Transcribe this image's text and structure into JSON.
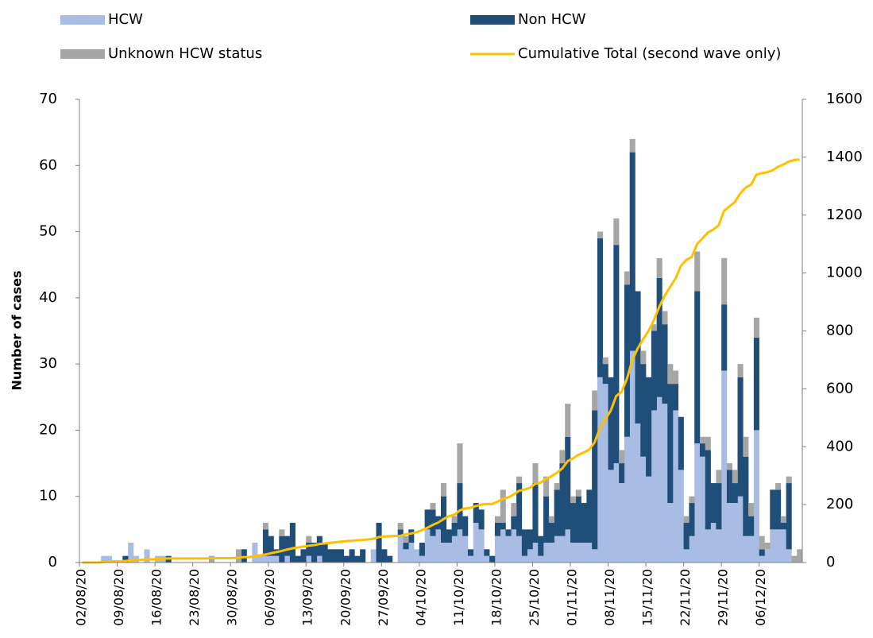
{
  "chart_data": {
    "type": "bar",
    "stacked": true,
    "ylabel": "Number of cases",
    "categories": [
      "02/08/20",
      null,
      null,
      null,
      null,
      null,
      null,
      "09/08/20",
      null,
      null,
      null,
      null,
      null,
      null,
      "16/08/20",
      null,
      null,
      null,
      null,
      null,
      null,
      "23/08/20",
      null,
      null,
      null,
      null,
      null,
      null,
      "30/08/20",
      null,
      null,
      null,
      null,
      null,
      null,
      "06/09/20",
      null,
      null,
      null,
      null,
      null,
      null,
      "13/09/20",
      null,
      null,
      null,
      null,
      null,
      null,
      "20/09/20",
      null,
      null,
      null,
      null,
      null,
      null,
      "27/09/20",
      null,
      null,
      null,
      null,
      null,
      null,
      "04/10/20",
      null,
      null,
      null,
      null,
      null,
      null,
      "11/10/20",
      null,
      null,
      null,
      null,
      null,
      null,
      "18/10/20",
      null,
      null,
      null,
      null,
      null,
      null,
      "25/10/20",
      null,
      null,
      null,
      null,
      null,
      null,
      "01/11/20",
      null,
      null,
      null,
      null,
      null,
      null,
      "08/11/20",
      null,
      null,
      null,
      null,
      null,
      null,
      "15/11/20",
      null,
      null,
      null,
      null,
      null,
      null,
      "22/11/20",
      null,
      null,
      null,
      null,
      null,
      null,
      "29/11/20",
      null,
      null,
      null,
      null,
      null,
      null,
      "06/12/20",
      null,
      null,
      null,
      null,
      null,
      null,
      null
    ],
    "series": [
      {
        "name": "HCW",
        "color": "#a9bde4",
        "values": [
          0,
          0,
          0,
          0,
          1,
          1,
          0,
          0,
          0,
          3,
          1,
          0,
          2,
          0,
          1,
          1,
          0,
          0,
          0,
          0,
          0,
          0,
          0,
          0,
          0,
          0,
          0,
          0,
          0,
          0,
          0,
          0,
          3,
          1,
          1,
          1,
          1,
          0,
          1,
          0,
          0,
          0,
          1,
          0,
          1,
          0,
          0,
          0,
          0,
          0,
          0,
          0,
          0,
          0,
          2,
          0,
          0,
          0,
          0,
          4,
          2,
          3,
          2,
          1,
          5,
          4,
          5,
          3,
          3,
          4,
          5,
          4,
          1,
          6,
          5,
          1,
          0,
          4,
          5,
          4,
          5,
          4,
          1,
          2,
          3,
          1,
          3,
          3,
          4,
          4,
          5,
          3,
          3,
          3,
          3,
          2,
          28,
          27,
          14,
          15,
          12,
          19,
          32,
          21,
          16,
          13,
          23,
          25,
          24,
          9,
          23,
          14,
          2,
          4,
          18,
          16,
          5,
          6,
          5,
          29,
          9,
          9,
          10,
          4,
          4,
          20,
          1,
          2,
          5,
          5,
          5,
          2,
          0,
          0
        ]
      },
      {
        "name": "Non HCW",
        "color": "#1f4e79",
        "values": [
          0,
          0,
          0,
          0,
          0,
          0,
          0,
          0,
          1,
          0,
          0,
          0,
          0,
          0,
          0,
          0,
          1,
          0,
          0,
          0,
          0,
          0,
          0,
          0,
          0,
          0,
          0,
          0,
          0,
          0,
          2,
          0,
          0,
          0,
          4,
          3,
          1,
          4,
          3,
          6,
          1,
          2,
          2,
          3,
          3,
          3,
          2,
          2,
          2,
          1,
          2,
          1,
          2,
          0,
          0,
          6,
          2,
          1,
          0,
          1,
          1,
          2,
          0,
          2,
          3,
          4,
          2,
          7,
          2,
          2,
          7,
          3,
          1,
          3,
          3,
          1,
          1,
          2,
          1,
          1,
          2,
          8,
          4,
          3,
          9,
          3,
          7,
          3,
          7,
          11,
          14,
          6,
          7,
          6,
          8,
          21,
          21,
          3,
          14,
          33,
          3,
          23,
          30,
          20,
          14,
          15,
          12,
          18,
          12,
          18,
          4,
          8,
          4,
          5,
          23,
          2,
          12,
          6,
          7,
          10,
          5,
          3,
          18,
          12,
          3,
          14,
          1,
          0,
          6,
          6,
          1,
          10,
          0,
          0
        ]
      },
      {
        "name": "Unknown HCW status",
        "color": "#a6a6a6",
        "values": [
          0,
          0,
          0,
          0,
          0,
          0,
          0,
          0,
          0,
          0,
          0,
          0,
          0,
          0,
          0,
          0,
          0,
          0,
          0,
          0,
          0,
          0,
          0,
          0,
          1,
          0,
          0,
          0,
          0,
          2,
          0,
          0,
          0,
          0,
          1,
          0,
          0,
          1,
          0,
          0,
          0,
          0,
          1,
          0,
          0,
          0,
          0,
          0,
          0,
          0,
          0,
          0,
          0,
          0,
          0,
          0,
          0,
          0,
          0,
          1,
          1,
          0,
          0,
          0,
          0,
          1,
          0,
          2,
          0,
          1,
          6,
          0,
          0,
          0,
          0,
          0,
          0,
          1,
          5,
          0,
          2,
          1,
          0,
          0,
          3,
          0,
          3,
          1,
          1,
          2,
          5,
          1,
          1,
          0,
          0,
          3,
          1,
          1,
          0,
          4,
          2,
          2,
          2,
          0,
          2,
          0,
          1,
          3,
          2,
          3,
          2,
          0,
          1,
          1,
          6,
          1,
          2,
          0,
          2,
          7,
          1,
          2,
          2,
          3,
          2,
          3,
          2,
          1,
          0,
          1,
          1,
          1,
          1,
          2
        ]
      },
      {
        "name": "Cumulative Total (second wave only)",
        "color": "#ffc000",
        "axis": "y2",
        "values": [
          0,
          0,
          0,
          0,
          2,
          4,
          4,
          4,
          5,
          8,
          9,
          9,
          11,
          11,
          12,
          13,
          14,
          14,
          14,
          14,
          14,
          14,
          14,
          14,
          15,
          15,
          15,
          15,
          15,
          17,
          19,
          19,
          22,
          25,
          28,
          32,
          36,
          40,
          45,
          49,
          52,
          55,
          58,
          60,
          64,
          66,
          68,
          70,
          72,
          74,
          75,
          77,
          78,
          80,
          82,
          88,
          90,
          91,
          92,
          92,
          98,
          100,
          105,
          112,
          120,
          130,
          138,
          150,
          160,
          165,
          180,
          187,
          189,
          195,
          200,
          202,
          202,
          210,
          220,
          225,
          235,
          248,
          252,
          258,
          272,
          276,
          290,
          297,
          310,
          325,
          350,
          360,
          372,
          380,
          390,
          415,
          465,
          495,
          525,
          575,
          590,
          635,
          700,
          740,
          772,
          800,
          838,
          884,
          922,
          952,
          981,
          1025,
          1045,
          1055,
          1100,
          1120,
          1140,
          1150,
          1165,
          1215,
          1230,
          1245,
          1275,
          1295,
          1305,
          1340,
          1345,
          1348,
          1355,
          1367,
          1375,
          1385,
          1390,
          1392
        ]
      }
    ],
    "ylim": [
      0,
      70
    ],
    "yticks": [
      0,
      10,
      20,
      30,
      40,
      50,
      60,
      70
    ],
    "y2lim": [
      0,
      1600
    ],
    "y2ticks": [
      0,
      200,
      400,
      600,
      800,
      1000,
      1200,
      1400,
      1600
    ],
    "grid": false
  }
}
